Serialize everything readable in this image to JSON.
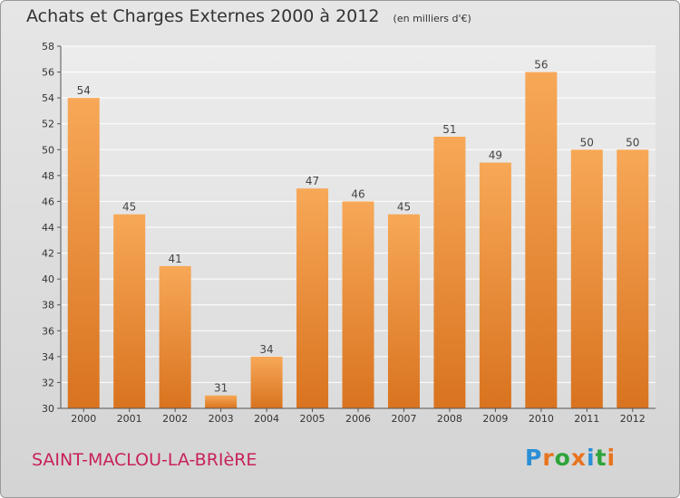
{
  "header": {
    "title": "Achats et Charges Externes 2000 à 2012",
    "subtitle": "(en milliers d'€)"
  },
  "footer": {
    "commune": "SAINT-MACLOU-LA-BRIèRE",
    "logo": {
      "text": "Proxiti",
      "letter_colors": [
        "#2a8fd6",
        "#e8731e",
        "#2ea43a",
        "#e8731e",
        "#2a8fd6",
        "#2ea43a",
        "#e8731e"
      ]
    }
  },
  "chart_data": {
    "type": "bar",
    "categories": [
      "2000",
      "2001",
      "2002",
      "2003",
      "2004",
      "2005",
      "2006",
      "2007",
      "2008",
      "2009",
      "2010",
      "2011",
      "2012"
    ],
    "values": [
      54,
      45,
      41,
      31,
      34,
      47,
      46,
      45,
      51,
      49,
      56,
      50,
      50
    ],
    "data_labels": [
      "54",
      "45",
      "41",
      "31",
      "34",
      "47",
      "46",
      "45",
      "51",
      "49",
      "56",
      "50",
      "50"
    ],
    "ylim": [
      30,
      58
    ],
    "yticks": [
      30,
      32,
      34,
      36,
      38,
      40,
      42,
      44,
      46,
      48,
      50,
      52,
      54,
      56,
      58
    ],
    "grid": true,
    "bar_color_top": "#f7a857",
    "bar_color_bottom": "#d9731f",
    "xlabel": "",
    "ylabel": ""
  }
}
